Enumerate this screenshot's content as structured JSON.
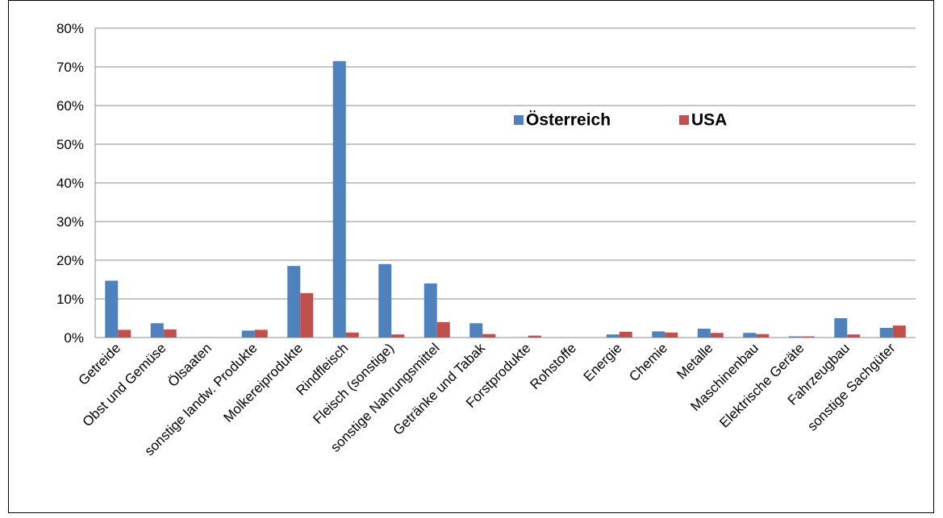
{
  "chart_data": {
    "type": "bar",
    "categories": [
      "Getreide",
      "Obst und Gemüse",
      "Ölsaaten",
      "sonstige landw. Produkte",
      "Molkereiprodukte",
      "Rindfleisch",
      "Fleisch (sonstige)",
      "sonstige Nahrungsmittel",
      "Getränke und Tabak",
      "Forstprodukte",
      "Rohstoffe",
      "Energie",
      "Chemie",
      "Metalle",
      "Maschinenbau",
      "Elektrische Geräte",
      "Fahrzeugbau",
      "sonstige Sachgüter"
    ],
    "series": [
      {
        "name": "Österreich",
        "color": "#4f81bd",
        "values": [
          14.7,
          3.7,
          0,
          1.8,
          18.5,
          71.5,
          19,
          14,
          3.7,
          0.1,
          0,
          0.8,
          1.6,
          2.3,
          1.2,
          0.3,
          5,
          2.5
        ]
      },
      {
        "name": "USA",
        "color": "#c0504d",
        "values": [
          2.0,
          2.1,
          0,
          2.0,
          11.5,
          1.3,
          0.8,
          4,
          0.9,
          0.5,
          0,
          1.5,
          1.3,
          1.2,
          0.9,
          0.3,
          0.8,
          3.1
        ]
      }
    ],
    "ylim": [
      0,
      80
    ],
    "yticks": [
      {
        "value": 0,
        "label": "0%"
      },
      {
        "value": 10,
        "label": "10%"
      },
      {
        "value": 20,
        "label": "20%"
      },
      {
        "value": 30,
        "label": "30%"
      },
      {
        "value": 40,
        "label": "40%"
      },
      {
        "value": 50,
        "label": "50%"
      },
      {
        "value": 60,
        "label": "60%"
      },
      {
        "value": 70,
        "label": "70%"
      },
      {
        "value": 80,
        "label": "80%"
      }
    ],
    "grid": true
  }
}
